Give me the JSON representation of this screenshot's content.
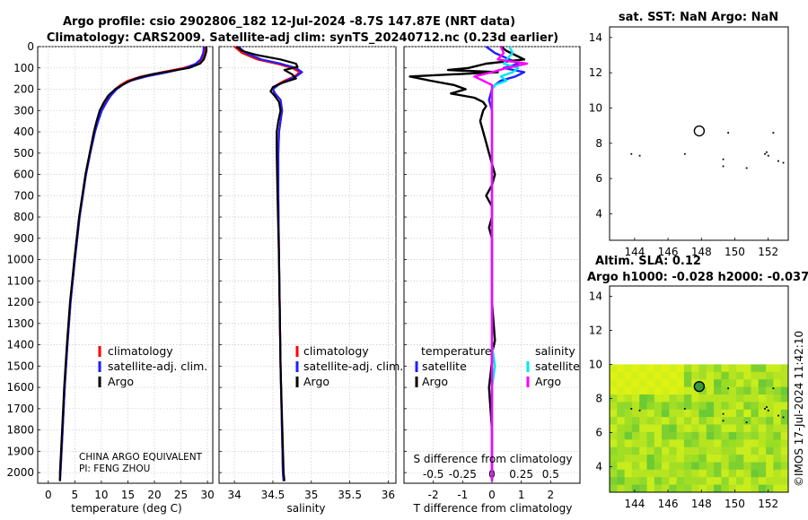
{
  "header": {
    "title_line1": "Argo profile: csio 2902806_182 12-Jul-2024 -8.7S 147.87E (NRT data)",
    "title_line2": "Climatology: CARS2009. Satellite-adj clim: synTS_20240712.nc (0.23d earlier)"
  },
  "footer": {
    "agency": "CHINA ARGO EQUIVALENT",
    "pi": "PI: FENG ZHOU",
    "copyright": "©IMOS 17-Jul-2024 11:42:10"
  },
  "colors": {
    "climatology": "#ff0000",
    "satellite": "#1f1fff",
    "argo": "#000000",
    "sal_satellite": "#00e5ee",
    "sal_argo": "#ff00ff"
  },
  "chart_data": [
    {
      "type": "line",
      "id": "temperature-profile",
      "xlabel": "temperature (deg C)",
      "xlim": [
        -2,
        31
      ],
      "xticks": [
        "0",
        "5",
        "10",
        "15",
        "20",
        "25",
        "30"
      ],
      "xtick_values": [
        0,
        5,
        10,
        15,
        20,
        25,
        30
      ],
      "ylim": [
        2050,
        0
      ],
      "yticks": [
        "0",
        "100",
        "200",
        "300",
        "400",
        "500",
        "600",
        "700",
        "800",
        "900",
        "1000",
        "1100",
        "1200",
        "1300",
        "1400",
        "1500",
        "1600",
        "1700",
        "1800",
        "1900",
        "2000"
      ],
      "ytick_values": [
        0,
        100,
        200,
        300,
        400,
        500,
        600,
        700,
        800,
        900,
        1000,
        1100,
        1200,
        1300,
        1400,
        1500,
        1600,
        1700,
        1800,
        1900,
        2000
      ],
      "legend": [
        "climatology",
        "satellite-adj. clim.",
        "Argo"
      ],
      "series": [
        {
          "name": "climatology",
          "color": "#ff0000",
          "depth": [
            0,
            30,
            60,
            80,
            100,
            120,
            140,
            160,
            180,
            200,
            230,
            260,
            300,
            350,
            400,
            500,
            600,
            800,
            1000,
            1200,
            1400,
            1600,
            1800,
            2000,
            2040
          ],
          "values": [
            29.5,
            29.4,
            28.9,
            28.0,
            25.5,
            21.5,
            17.5,
            15.0,
            13.6,
            12.6,
            11.6,
            10.9,
            10.0,
            9.3,
            8.8,
            7.9,
            7.1,
            5.9,
            5.0,
            4.2,
            3.6,
            3.1,
            2.7,
            2.3,
            2.2
          ]
        },
        {
          "name": "satellite-adj. clim.",
          "color": "#1f1fff",
          "depth": [
            0,
            30,
            60,
            80,
            100,
            120,
            140,
            160,
            180,
            200,
            230,
            260,
            300,
            350,
            400,
            500,
            600,
            800,
            1000,
            1200,
            1400,
            1600,
            1800,
            2000,
            2040
          ],
          "values": [
            29.3,
            29.2,
            28.7,
            27.8,
            26.0,
            22.5,
            18.5,
            15.5,
            14.0,
            12.9,
            11.8,
            11.0,
            10.1,
            9.4,
            8.8,
            7.9,
            7.1,
            5.9,
            5.0,
            4.2,
            3.6,
            3.1,
            2.7,
            2.3,
            2.2
          ]
        },
        {
          "name": "Argo",
          "color": "#000000",
          "depth": [
            0,
            20,
            40,
            60,
            80,
            100,
            115,
            130,
            150,
            170,
            200,
            230,
            260,
            300,
            350,
            400,
            500,
            600,
            800,
            1000,
            1200,
            1400,
            1600,
            1800,
            2000,
            2040
          ],
          "values": [
            29.8,
            29.8,
            29.6,
            29.3,
            28.6,
            26.5,
            23.0,
            19.5,
            16.5,
            14.6,
            12.6,
            11.3,
            10.5,
            9.7,
            9.1,
            8.6,
            7.8,
            7.0,
            5.8,
            4.9,
            4.1,
            3.5,
            3.0,
            2.6,
            2.2,
            2.2
          ]
        }
      ]
    },
    {
      "type": "line",
      "id": "salinity-profile",
      "xlabel": "salinity",
      "xlim": [
        33.8,
        36.1
      ],
      "xticks": [
        "34",
        "34.5",
        "35",
        "35.5",
        "36"
      ],
      "xtick_values": [
        34,
        34.5,
        35,
        35.5,
        36
      ],
      "ylim": [
        2050,
        0
      ],
      "legend": [
        "climatology",
        "satellite-adj. clim.",
        "Argo"
      ],
      "series": [
        {
          "name": "climatology",
          "color": "#ff0000",
          "depth": [
            0,
            30,
            60,
            80,
            100,
            120,
            140,
            160,
            180,
            200,
            220,
            250,
            300,
            350,
            400,
            500,
            700,
            1000,
            1500,
            2000,
            2040
          ],
          "values": [
            34.0,
            34.1,
            34.3,
            34.55,
            34.75,
            34.85,
            34.78,
            34.65,
            34.55,
            34.5,
            34.52,
            34.6,
            34.62,
            34.6,
            34.58,
            34.57,
            34.57,
            34.58,
            34.6,
            34.63,
            34.64
          ]
        },
        {
          "name": "satellite-adj. clim.",
          "color": "#1f1fff",
          "depth": [
            0,
            30,
            60,
            80,
            100,
            120,
            140,
            160,
            180,
            200,
            220,
            250,
            300,
            350,
            400,
            500,
            700,
            1000,
            1500,
            2000,
            2040
          ],
          "values": [
            34.05,
            34.15,
            34.35,
            34.6,
            34.8,
            34.88,
            34.8,
            34.68,
            34.57,
            34.5,
            34.53,
            34.6,
            34.62,
            34.6,
            34.58,
            34.57,
            34.57,
            34.58,
            34.6,
            34.63,
            34.64
          ]
        },
        {
          "name": "Argo",
          "color": "#000000",
          "depth": [
            0,
            20,
            40,
            60,
            80,
            95,
            110,
            130,
            150,
            170,
            190,
            210,
            230,
            260,
            300,
            350,
            400,
            500,
            700,
            1000,
            1500,
            2000,
            2040
          ],
          "values": [
            34.03,
            34.1,
            34.3,
            34.6,
            34.8,
            34.82,
            34.65,
            34.75,
            34.8,
            34.62,
            34.5,
            34.47,
            34.52,
            34.58,
            34.6,
            34.57,
            34.55,
            34.55,
            34.56,
            34.58,
            34.6,
            34.64,
            34.65
          ]
        }
      ]
    },
    {
      "type": "line",
      "id": "difference-profile",
      "xlabel": "T difference from climatology",
      "xlabel_top": "S difference from climatology",
      "xlim": [
        -3,
        3
      ],
      "xticks": [
        "-2",
        "-1",
        "0",
        "1",
        "2"
      ],
      "xtick_values": [
        -2,
        -1,
        0,
        1,
        2
      ],
      "s_xticks": [
        "-0.5",
        "-0.25",
        "0",
        "0.25",
        "0.5"
      ],
      "s_xtick_values": [
        -2,
        -1,
        0,
        1,
        2
      ],
      "legend_titles": [
        "temperature",
        "salinity"
      ],
      "legend": [
        "satellite",
        "Argo",
        "satellite",
        "Argo"
      ],
      "series": [
        {
          "name": "temperature satellite",
          "color": "#1f1fff",
          "depth": [
            0,
            30,
            60,
            80,
            100,
            120,
            140,
            160,
            180,
            200,
            250,
            300,
            400,
            600,
            800,
            1000,
            1400,
            2000,
            2040
          ],
          "values": [
            -0.2,
            0.1,
            0.6,
            0.9,
            0.4,
            1.1,
            0.8,
            0.3,
            0.1,
            0.0,
            -0.1,
            0.0,
            0.0,
            0.0,
            0.0,
            0.0,
            0.0,
            0.0,
            0.0
          ]
        },
        {
          "name": "temperature Argo",
          "color": "#000000",
          "depth": [
            0,
            20,
            40,
            60,
            80,
            100,
            110,
            120,
            140,
            160,
            180,
            200,
            220,
            240,
            260,
            280,
            300,
            350,
            400,
            450,
            500,
            550,
            600,
            650,
            700,
            750,
            800,
            850,
            900,
            950,
            1000,
            1200,
            1380,
            1440,
            1480,
            1600,
            1800,
            2000,
            2040
          ],
          "values": [
            0.3,
            0.5,
            0.8,
            1.1,
            -0.2,
            -0.8,
            -1.5,
            0.2,
            -2.8,
            -2.1,
            -1.3,
            -0.9,
            -1.4,
            -0.6,
            -0.3,
            -0.2,
            -0.3,
            -0.4,
            -0.3,
            -0.2,
            -0.1,
            0.0,
            0.1,
            0.0,
            -0.2,
            0.0,
            0.0,
            -0.1,
            0.0,
            0.0,
            0.0,
            0.0,
            0.1,
            0.0,
            0.0,
            -0.1,
            0.0,
            0.0,
            0.0
          ]
        },
        {
          "name": "salinity satellite",
          "color": "#00e5ee",
          "depth": [
            0,
            30,
            60,
            80,
            100,
            120,
            140,
            160,
            180,
            200,
            250,
            300,
            400,
            600,
            800,
            1000,
            1400,
            1500,
            1600,
            1800,
            2000,
            2040
          ],
          "values": [
            0.6,
            0.7,
            0.5,
            0.4,
            0.9,
            0.7,
            0.3,
            0.5,
            0.1,
            0.0,
            0.0,
            0.0,
            0.0,
            0.0,
            0.0,
            0.0,
            0.0,
            0.1,
            0.0,
            0.0,
            0.0,
            0.0
          ]
        },
        {
          "name": "salinity Argo",
          "color": "#ff00ff",
          "depth": [
            0,
            30,
            60,
            80,
            100,
            120,
            140,
            160,
            180,
            200,
            250,
            300,
            400,
            600,
            800,
            1000,
            1400,
            2000,
            2040
          ],
          "values": [
            0.3,
            0.4,
            0.2,
            1.2,
            0.5,
            0.0,
            -0.6,
            -0.3,
            0.0,
            0.0,
            0.0,
            0.0,
            0.0,
            0.0,
            0.0,
            0.0,
            0.0,
            0.0,
            0.0
          ]
        }
      ]
    },
    {
      "type": "scatter",
      "id": "sst-map",
      "title": "sat. SST: NaN Argo: NaN",
      "xlim": [
        142.5,
        153.2
      ],
      "ylim": [
        2.5,
        14.6
      ],
      "xticks": [
        "144",
        "146",
        "148",
        "150",
        "152"
      ],
      "xtick_values": [
        144,
        146,
        148,
        150,
        152
      ],
      "yticks": [
        "4",
        "6",
        "8",
        "10",
        "12",
        "14"
      ],
      "ytick_values": [
        4,
        6,
        8,
        10,
        12,
        14
      ],
      "profile_position": [
        147.87,
        8.7
      ],
      "coast_points": [
        [
          143.8,
          7.4
        ],
        [
          144.3,
          7.3
        ],
        [
          147.0,
          7.4
        ],
        [
          149.6,
          8.6
        ],
        [
          149.3,
          7.1
        ],
        [
          149.3,
          6.7
        ],
        [
          151.8,
          7.4
        ],
        [
          151.9,
          7.5
        ],
        [
          152.0,
          7.3
        ],
        [
          152.3,
          8.6
        ],
        [
          152.6,
          7.0
        ],
        [
          152.9,
          6.9
        ],
        [
          150.7,
          6.6
        ]
      ]
    },
    {
      "type": "heatmap",
      "id": "sla-map",
      "title_line1": "Altim. SLA: 0.12",
      "title_line2": "Argo h1000: -0.028 h2000: -0.037",
      "xlim": [
        142.5,
        153.2
      ],
      "ylim": [
        2.5,
        14.6
      ],
      "xticks": [
        "144",
        "146",
        "148",
        "150",
        "152"
      ],
      "xtick_values": [
        144,
        146,
        148,
        150,
        152
      ],
      "yticks": [
        "4",
        "6",
        "8",
        "10",
        "12",
        "14"
      ],
      "ytick_values": [
        4,
        6,
        8,
        10,
        12,
        14
      ],
      "data_extent_lat": [
        2.5,
        10.0
      ],
      "profile_position": [
        147.87,
        8.7
      ],
      "coast_points": [
        [
          143.8,
          7.4
        ],
        [
          144.3,
          7.3
        ],
        [
          147.0,
          7.4
        ],
        [
          149.6,
          8.6
        ],
        [
          149.3,
          7.1
        ],
        [
          149.3,
          6.7
        ],
        [
          151.8,
          7.4
        ],
        [
          151.9,
          7.5
        ],
        [
          152.0,
          7.3
        ],
        [
          152.3,
          8.6
        ],
        [
          152.6,
          7.0
        ],
        [
          152.9,
          6.9
        ],
        [
          150.7,
          6.6
        ]
      ]
    }
  ]
}
